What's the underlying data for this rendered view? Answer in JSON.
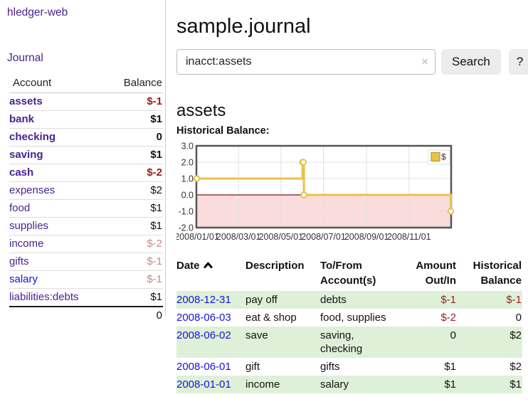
{
  "app": {
    "brand": "hledger-web",
    "nav_journal": "Journal"
  },
  "header": {
    "title": "sample.journal"
  },
  "search": {
    "value": "inacct:assets",
    "clear_icon": "×",
    "button_label": "Search",
    "help_label": "?"
  },
  "account_page": {
    "heading": "assets",
    "section_label": "Historical Balance:"
  },
  "sidebar": {
    "header_account": "Account",
    "header_balance": "Balance",
    "accounts": [
      {
        "name": "assets",
        "indent": 1,
        "bold": true,
        "balance": "$-1"
      },
      {
        "name": "bank",
        "indent": 2,
        "bold": true,
        "balance": "$1"
      },
      {
        "name": "checking",
        "indent": 3,
        "bold": true,
        "balance": "0"
      },
      {
        "name": "saving",
        "indent": 3,
        "bold": true,
        "balance": "$1"
      },
      {
        "name": "cash",
        "indent": 2,
        "bold": true,
        "balance": "$-2"
      },
      {
        "name": "expenses",
        "indent": 1,
        "bold": false,
        "balance": "$2"
      },
      {
        "name": "food",
        "indent": 2,
        "bold": false,
        "balance": "$1"
      },
      {
        "name": "supplies",
        "indent": 2,
        "bold": false,
        "balance": "$1"
      },
      {
        "name": "income",
        "indent": 1,
        "bold": false,
        "balance": "$-2"
      },
      {
        "name": "gifts",
        "indent": 2,
        "bold": false,
        "balance": "$-1"
      },
      {
        "name": "salary",
        "indent": 2,
        "bold": false,
        "balance": "$-1",
        "link_blue": true
      },
      {
        "name": "liabilities:debts",
        "indent": 1,
        "bold": false,
        "balance": "$1"
      }
    ],
    "total": "0"
  },
  "chart_data": {
    "type": "line",
    "step": true,
    "title": "Historical Balance:",
    "series": [
      {
        "name": "$",
        "points": [
          [
            "2008-01-01",
            1
          ],
          [
            "2008-06-01",
            2
          ],
          [
            "2008-06-02",
            2
          ],
          [
            "2008-06-03",
            0
          ],
          [
            "2008-12-31",
            -1
          ]
        ]
      }
    ],
    "ylim": [
      -2,
      3
    ],
    "y_ticks": [
      "3.0",
      "2.0",
      "1.0",
      "0.0",
      "-1.0",
      "-2.0"
    ],
    "x_ticks": [
      "2008/01/01",
      "2008/03/01",
      "2008/05/01",
      "2008/07/01",
      "2008/09/01",
      "2008/11/01"
    ],
    "x_range": [
      "2008-01-01",
      "2008-12-31"
    ],
    "legend": "$",
    "legend_position": "top-right",
    "grid": true,
    "colors": {
      "line": "#e8c24a",
      "marker_fill": "#ffffff",
      "negative_fill": "#fadcdc",
      "zero_line": "#801818",
      "grid_line": "#e0e0e0",
      "border": "#555555"
    }
  },
  "register": {
    "headers": [
      "Date",
      "Description",
      "To/From\nAccount(s)",
      "Amount\nOut/In",
      "Historical\nBalance"
    ],
    "rows": [
      {
        "date": "2008-12-31",
        "description": "pay off",
        "accounts": "debts",
        "amount": "$-1",
        "balance": "$-1"
      },
      {
        "date": "2008-06-03",
        "description": "eat & shop",
        "accounts": "food, supplies",
        "amount": "$-2",
        "balance": "0"
      },
      {
        "date": "2008-06-02",
        "description": "save",
        "accounts": "saving,\nchecking",
        "amount": "0",
        "balance": "$2"
      },
      {
        "date": "2008-06-01",
        "description": "gift",
        "accounts": "gifts",
        "amount": "$1",
        "balance": "$2"
      },
      {
        "date": "2008-01-01",
        "description": "income",
        "accounts": "salary",
        "amount": "$1",
        "balance": "$1"
      }
    ]
  },
  "colors": {
    "link_purple": "#4a2191",
    "link_blue": "#1414d6",
    "negative_bold": "#9c1a1a",
    "negative_light": "#c28b8b",
    "negative_table": "#992222",
    "row_stripe_green": "#dff0d8"
  }
}
